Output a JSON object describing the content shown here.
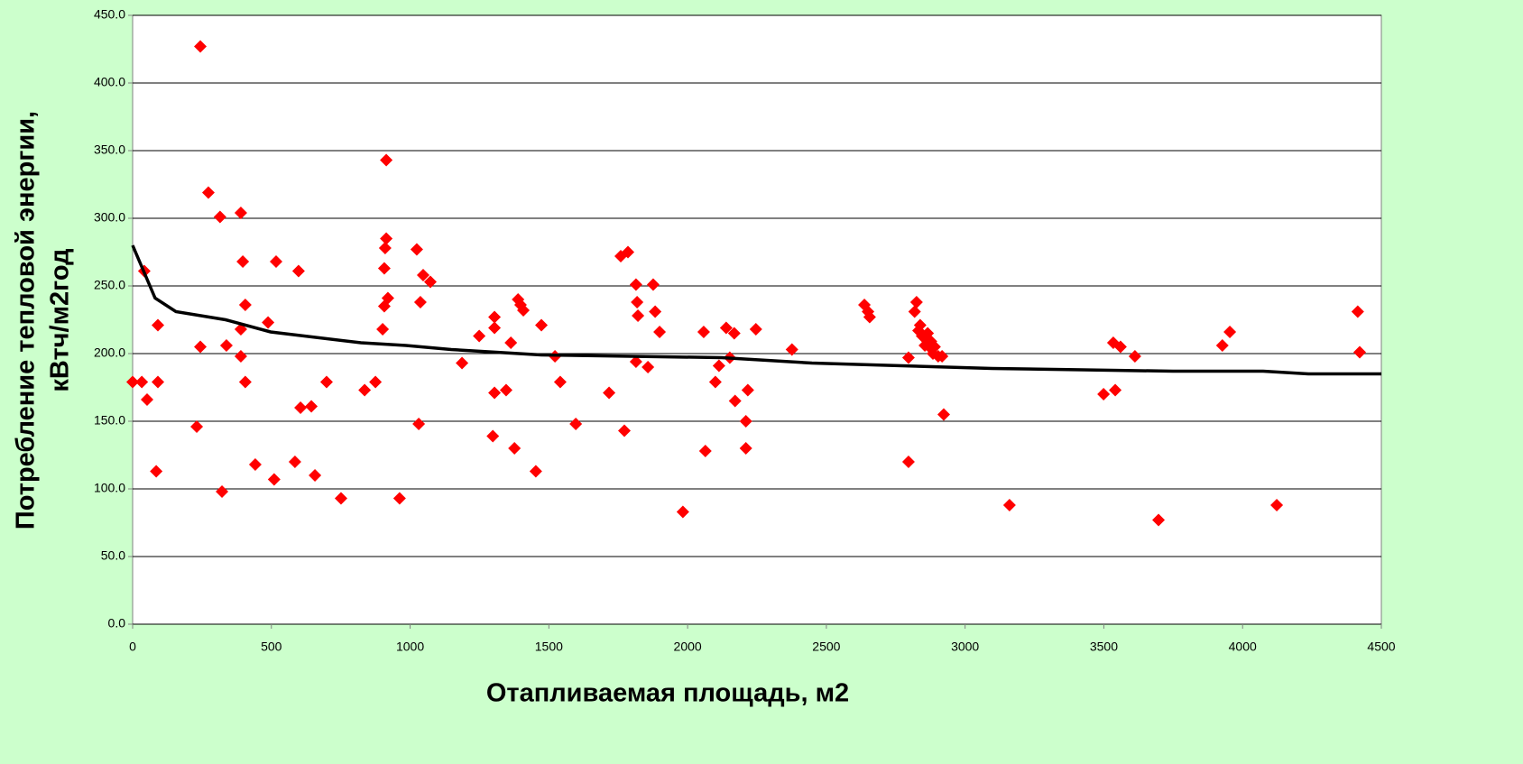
{
  "chart_data": {
    "type": "scatter",
    "xlabel": "Отапливаемая площадь, м2",
    "ylabel": [
      "Потребление тепловой энергии,",
      "кВтч/м2год"
    ],
    "xlim": [
      0,
      4500
    ],
    "ylim": [
      0,
      450
    ],
    "xticks": [
      0,
      500,
      1000,
      1500,
      2000,
      2500,
      3000,
      3500,
      4000,
      4500
    ],
    "yticks": [
      {
        "value": 0,
        "label": "0.0"
      },
      {
        "value": 50,
        "label": "50.0"
      },
      {
        "value": 100,
        "label": "100.0"
      },
      {
        "value": 150,
        "label": "150.0"
      },
      {
        "value": 200,
        "label": "200.0"
      },
      {
        "value": 250,
        "label": "250.0"
      },
      {
        "value": 300,
        "label": "300.0"
      },
      {
        "value": 350,
        "label": "350.0"
      },
      {
        "value": 400,
        "label": "400.0"
      },
      {
        "value": 450,
        "label": "450.0"
      }
    ],
    "grid": true,
    "series": [
      {
        "type": "scatter",
        "color": "#ff0000",
        "x": [
          0,
          33,
          42,
          52,
          85,
          91,
          91,
          231,
          244,
          244,
          273,
          315,
          322,
          338,
          390,
          390,
          390,
          397,
          406,
          406,
          442,
          488,
          510,
          517,
          585,
          598,
          605,
          644,
          657,
          699,
          751,
          836,
          875,
          901,
          907,
          907,
          910,
          914,
          914,
          920,
          962,
          1024,
          1031,
          1037,
          1047,
          1073,
          1187,
          1249,
          1298,
          1304,
          1304,
          1304,
          1346,
          1363,
          1376,
          1389,
          1398,
          1408,
          1453,
          1473,
          1522,
          1541,
          1597,
          1717,
          1759,
          1772,
          1785,
          1814,
          1814,
          1818,
          1821,
          1857,
          1876,
          1883,
          1899,
          1983,
          2058,
          2064,
          2100,
          2113,
          2139,
          2152,
          2168,
          2171,
          2210,
          2210,
          2217,
          2246,
          2376,
          2637,
          2650,
          2656,
          2796,
          2796,
          2818,
          2825,
          2832,
          2838,
          2845,
          2855,
          2861,
          2865,
          2871,
          2877,
          2884,
          2890,
          2903,
          2917,
          2923,
          3160,
          3499,
          3534,
          3541,
          3560,
          3612,
          3697,
          3927,
          3954,
          4123,
          4415,
          4422
        ],
        "values": [
          179,
          179,
          261,
          166,
          113,
          221,
          179,
          146,
          427,
          205,
          319,
          301,
          98,
          206,
          304,
          218,
          198,
          268,
          236,
          179,
          118,
          223,
          107,
          268,
          120,
          261,
          160,
          161,
          110,
          179,
          93,
          173,
          179,
          218,
          235,
          263,
          278,
          285,
          343,
          241,
          93,
          277,
          148,
          238,
          258,
          253,
          193,
          213,
          139,
          227,
          171,
          219,
          173,
          208,
          130,
          240,
          236,
          232,
          113,
          221,
          198,
          179,
          148,
          171,
          272,
          143,
          275,
          251,
          194,
          238,
          228,
          190,
          251,
          231,
          216,
          83,
          216,
          128,
          179,
          191,
          219,
          197,
          215,
          165,
          150,
          130,
          173,
          218,
          203,
          236,
          231,
          227,
          197,
          120,
          231,
          238,
          217,
          221,
          213,
          206,
          210,
          215,
          205,
          209,
          200,
          205,
          198,
          198,
          155,
          88,
          170,
          208,
          173,
          205,
          198,
          77,
          206,
          216,
          88,
          231,
          201
        ]
      },
      {
        "type": "line",
        "color": "#000000",
        "x": [
          0,
          81,
          156,
          335,
          497,
          823,
          985,
          1148,
          1310,
          1473,
          1798,
          2123,
          2448,
          2773,
          3098,
          3424,
          3749,
          4074,
          4237,
          4500
        ],
        "values": [
          280,
          241,
          231,
          225,
          216,
          208,
          206,
          203,
          201,
          199,
          198,
          197,
          193,
          191,
          189,
          188,
          187,
          187,
          185,
          185
        ]
      }
    ]
  }
}
